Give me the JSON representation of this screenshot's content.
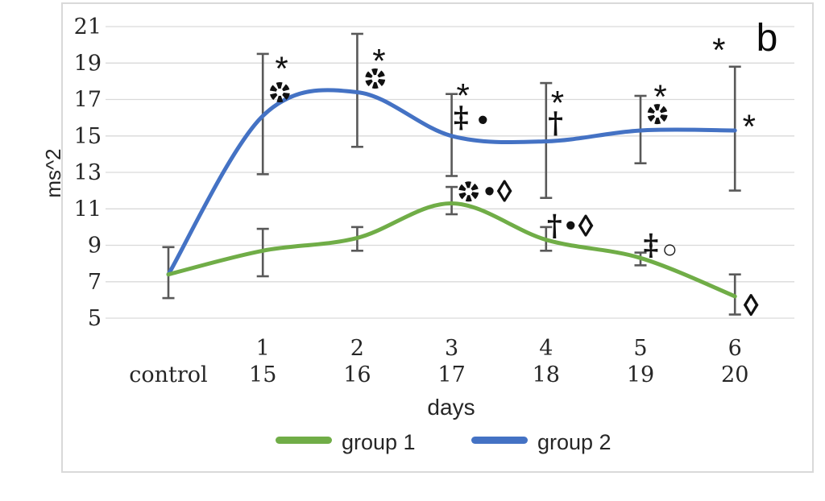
{
  "chart_data": {
    "type": "line",
    "panel_label": "b",
    "ylabel": "ms^2",
    "xlabel": "days",
    "ylim": [
      5,
      21
    ],
    "yticks": [
      21,
      19,
      17,
      15,
      13,
      11,
      9,
      7,
      5
    ],
    "grid": "horizontal",
    "legend_position": "bottom",
    "categories": [
      {
        "top": "",
        "bottom": "control"
      },
      {
        "top": "1",
        "bottom": "15"
      },
      {
        "top": "2",
        "bottom": "16"
      },
      {
        "top": "3",
        "bottom": "17"
      },
      {
        "top": "4",
        "bottom": "18"
      },
      {
        "top": "5",
        "bottom": "19"
      },
      {
        "top": "6",
        "bottom": "20"
      }
    ],
    "series": [
      {
        "name": "group 1",
        "color": "#70AD47",
        "values": [
          7.4,
          8.7,
          9.4,
          11.3,
          9.3,
          8.3,
          6.2
        ],
        "error_low": [
          6.1,
          7.3,
          8.7,
          10.7,
          8.7,
          7.9,
          5.2
        ],
        "error_high": [
          8.9,
          9.9,
          10.0,
          12.2,
          10.0,
          8.6,
          7.4
        ]
      },
      {
        "name": "group 2",
        "color": "#4472C4",
        "values": [
          7.4,
          16.1,
          17.4,
          15.0,
          14.7,
          15.3,
          15.3
        ],
        "error_low": [
          null,
          12.9,
          14.4,
          12.8,
          11.6,
          13.5,
          12.0
        ],
        "error_high": [
          null,
          19.5,
          20.6,
          17.3,
          17.9,
          17.2,
          18.8
        ]
      }
    ],
    "annotations": [
      {
        "symbol": "asterisk",
        "x": 1.2,
        "y": 19.0
      },
      {
        "symbol": "pinwheel",
        "x": 1.18,
        "y": 17.4
      },
      {
        "symbol": "asterisk",
        "x": 2.23,
        "y": 19.4
      },
      {
        "symbol": "pinwheel",
        "x": 2.19,
        "y": 18.15
      },
      {
        "symbol": "asterisk",
        "x": 3.12,
        "y": 17.5
      },
      {
        "symbol": "double-dagger",
        "x": 3.1,
        "y": 16.0
      },
      {
        "symbol": "bullet",
        "x": 3.33,
        "y": 15.85
      },
      {
        "symbol": "pinwheel",
        "x": 3.18,
        "y": 11.95
      },
      {
        "symbol": "bullet",
        "x": 3.4,
        "y": 11.95
      },
      {
        "symbol": "lozenge",
        "x": 3.56,
        "y": 12.0
      },
      {
        "symbol": "asterisk",
        "x": 4.12,
        "y": 17.1
      },
      {
        "symbol": "dagger",
        "x": 4.1,
        "y": 15.7
      },
      {
        "symbol": "dagger",
        "x": 4.09,
        "y": 10.05
      },
      {
        "symbol": "bullet",
        "x": 4.26,
        "y": 10.05
      },
      {
        "symbol": "lozenge",
        "x": 4.42,
        "y": 10.1
      },
      {
        "symbol": "asterisk",
        "x": 5.21,
        "y": 17.45
      },
      {
        "symbol": "pinwheel",
        "x": 5.18,
        "y": 16.2
      },
      {
        "symbol": "double-dagger",
        "x": 5.11,
        "y": 9.0
      },
      {
        "symbol": "circle",
        "x": 5.31,
        "y": 8.75
      },
      {
        "symbol": "asterisk",
        "x": 5.83,
        "y": 20.0
      },
      {
        "symbol": "asterisk",
        "x": 6.15,
        "y": 15.8
      },
      {
        "symbol": "lozenge",
        "x": 6.17,
        "y": 5.75
      }
    ],
    "symbols": {
      "asterisk": {
        "glyph": "*",
        "size": 42,
        "dy": 21,
        "family": "sans",
        "weight": "normal"
      },
      "dagger": {
        "glyph": "†",
        "size": 36,
        "dy": 12,
        "family": "serif",
        "weight": "600"
      },
      "double-dagger": {
        "glyph": "‡",
        "size": 36,
        "dy": 12,
        "family": "serif",
        "weight": "600"
      },
      "bullet": {
        "glyph": "•",
        "size": 38,
        "dy": 12,
        "family": "sans",
        "weight": "normal"
      },
      "lozenge": {
        "glyph": "◊",
        "size": 38,
        "dy": 14,
        "family": "sans",
        "weight": "bold"
      },
      "circle": {
        "glyph": "○",
        "size": 32,
        "dy": 10,
        "family": "sans",
        "weight": "bold"
      },
      "pinwheel": {
        "glyph": "pinwheel-shape"
      }
    },
    "colors": {
      "gridline": "#D9D9D9",
      "border": "#D9D9D9",
      "error_bar": "#595959",
      "text": "#262626",
      "symbol": "#111111"
    }
  }
}
